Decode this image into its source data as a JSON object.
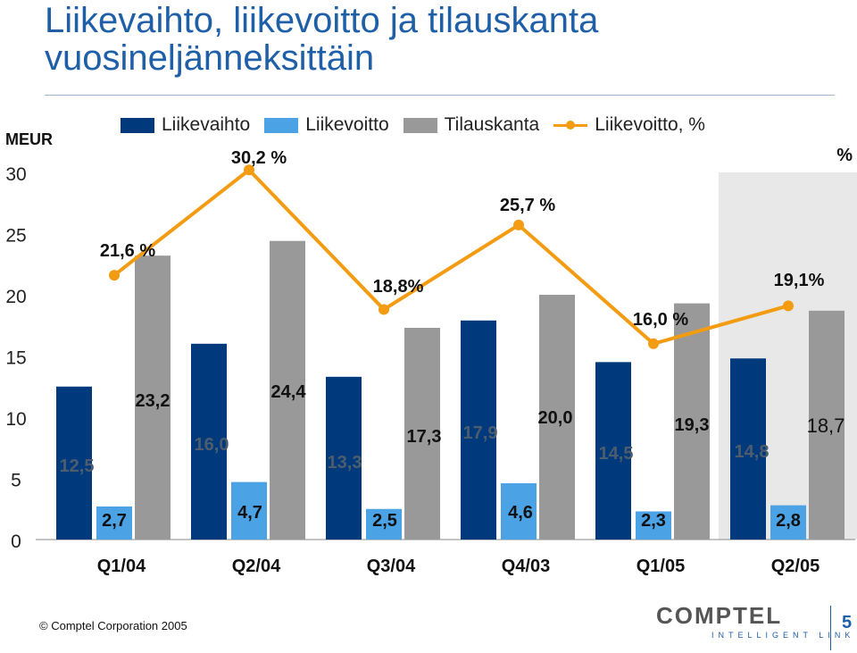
{
  "title": "Liikevaihto, liikevoitto ja tilauskanta vuosineljänneksittäin",
  "footer": "Comptel Corporation 2005",
  "copyright_symbol": "©",
  "logo": {
    "main": "COMPTEL",
    "sub": "INTELLIGENT LINK"
  },
  "page_number": "5",
  "colors": {
    "liikevaihto": "#003a7d",
    "liikevoitto": "#4ba3e6",
    "tilauskanta": "#999999",
    "line": "#f39c12",
    "highlight": "#e8e8e8"
  },
  "chart_data": {
    "type": "bar",
    "categories": [
      "Q1/04",
      "Q2/04",
      "Q3/04",
      "Q4/03",
      "Q1/05",
      "Q2/05"
    ],
    "ylabel": "MEUR",
    "y2label": "%",
    "ylim": [
      0,
      30
    ],
    "yticks": [
      "0",
      "5",
      "10",
      "15",
      "20",
      "25",
      "30"
    ],
    "grid": false,
    "legend_position": "top",
    "highlighted_category": "Q2/05",
    "series": [
      {
        "name": "Liikevaihto",
        "values": [
          12.5,
          16.0,
          13.3,
          17.9,
          14.5,
          14.8
        ],
        "labels": [
          "12,5",
          "16,0",
          "13,3",
          "17,9",
          "14,5",
          "14,8"
        ]
      },
      {
        "name": "Liikevoitto",
        "values": [
          2.7,
          4.7,
          2.5,
          4.6,
          2.3,
          2.8
        ],
        "labels": [
          "2,7",
          "4,7",
          "2,5",
          "4,6",
          "2,3",
          "2,8"
        ]
      },
      {
        "name": "Tilauskanta",
        "values": [
          23.2,
          24.4,
          17.3,
          20.0,
          19.3,
          18.7
        ],
        "labels": [
          "23,2",
          "24,4",
          "17,3",
          "20,0",
          "19,3",
          "18,7"
        ]
      },
      {
        "name": "Liikevoitto, %",
        "type": "line",
        "values": [
          21.6,
          30.2,
          18.8,
          25.7,
          16.0,
          19.1
        ],
        "labels": [
          "21,6 %",
          "30,2 %",
          "18,8%",
          "25,7 %",
          "16,0 %",
          "19,1%"
        ]
      }
    ]
  }
}
